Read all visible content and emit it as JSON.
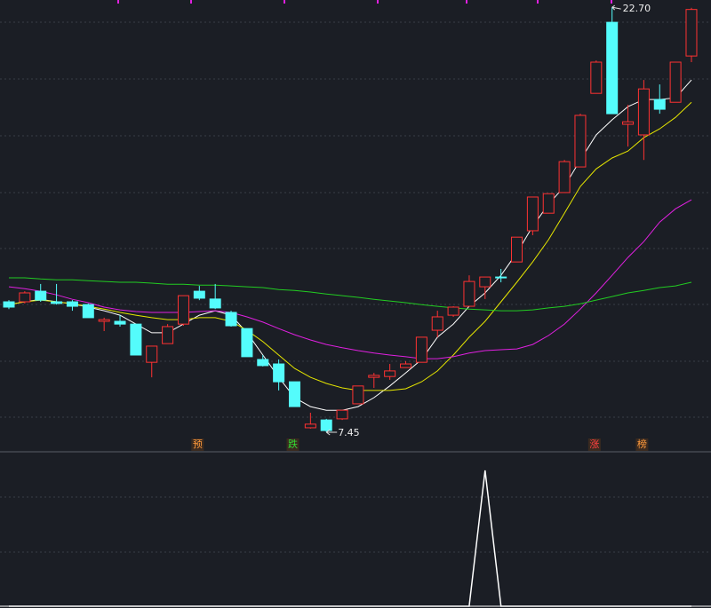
{
  "chart_data": [
    {
      "type": "candlestick",
      "up_color": "#ff3232",
      "down_color": "#54fcfc",
      "background": "#1b1e25",
      "ylim": [
        6.78,
        22.96
      ],
      "open": [
        12.13,
        12.13,
        12.51,
        12.13,
        12.13,
        12.03,
        11.43,
        11.43,
        11.33,
        9.96,
        10.63,
        11.33,
        12.51,
        12.23,
        11.75,
        11.17,
        10.06,
        9.9,
        9.26,
        7.61,
        7.89,
        7.93,
        8.47,
        9.42,
        9.45,
        9.77,
        9.96,
        11.11,
        11.65,
        11.97,
        12.67,
        13.02,
        13.56,
        14.68,
        15.31,
        16.05,
        16.97,
        19.61,
        22.16,
        18.5,
        18.12,
        19.39,
        19.29,
        20.95
      ],
      "high": [
        12.19,
        12.51,
        12.77,
        12.77,
        12.19,
        12.07,
        11.56,
        11.65,
        11.33,
        10.54,
        11.33,
        12.35,
        12.7,
        12.77,
        11.81,
        11.17,
        10.22,
        10.06,
        9.26,
        8.15,
        7.93,
        8.24,
        9.11,
        9.58,
        9.9,
        10.0,
        10.86,
        11.81,
        11.97,
        13.08,
        13.02,
        13.31,
        14.45,
        15.89,
        16.01,
        17.22,
        18.88,
        20.79,
        22.7,
        19.2,
        20.09,
        19.93,
        20.73,
        22.68
      ],
      "low": [
        11.87,
        12.07,
        12.13,
        12.03,
        11.81,
        11.56,
        11.08,
        11.24,
        10.22,
        9.42,
        10.63,
        11.27,
        12.19,
        11.87,
        11.24,
        10.16,
        9.81,
        8.95,
        8.37,
        7.58,
        7.45,
        7.89,
        8.47,
        9.04,
        9.33,
        9.77,
        9.96,
        10.86,
        11.59,
        11.97,
        12.23,
        12.83,
        13.56,
        14.52,
        15.31,
        16.05,
        16.97,
        19.61,
        18.88,
        17.7,
        17.22,
        18.88,
        19.29,
        20.73
      ],
      "close": [
        11.94,
        12.45,
        12.19,
        12.07,
        11.97,
        11.56,
        11.49,
        11.33,
        10.22,
        10.54,
        11.24,
        12.35,
        12.26,
        11.91,
        11.27,
        10.16,
        9.84,
        9.26,
        8.37,
        7.74,
        7.51,
        8.24,
        9.11,
        9.49,
        9.65,
        9.9,
        10.86,
        11.59,
        11.94,
        12.86,
        13.02,
        12.99,
        14.45,
        15.89,
        16.01,
        17.16,
        18.82,
        20.73,
        18.88,
        18.59,
        19.77,
        19.04,
        20.73,
        22.62
      ],
      "lines": [
        {
          "color": "#ffffff",
          "values": [
            12.03,
            12.13,
            12.22,
            12.13,
            12.06,
            11.94,
            11.81,
            11.65,
            11.33,
            11.02,
            11.02,
            11.33,
            11.65,
            11.81,
            11.65,
            11.02,
            10.22,
            9.42,
            8.69,
            8.37,
            8.24,
            8.24,
            8.37,
            8.69,
            9.11,
            9.58,
            10.06,
            10.86,
            11.33,
            11.97,
            12.45,
            13.08,
            13.88,
            14.84,
            15.63,
            16.27,
            17.22,
            18.12,
            18.66,
            19.13,
            19.39,
            19.39,
            19.45,
            20.09
          ]
        },
        {
          "color": "#e6e600",
          "values": [
            12.03,
            12.13,
            12.19,
            12.13,
            12.06,
            11.97,
            11.87,
            11.75,
            11.65,
            11.56,
            11.49,
            11.49,
            11.56,
            11.56,
            11.43,
            11.11,
            10.7,
            10.22,
            9.74,
            9.42,
            9.2,
            9.04,
            8.95,
            8.95,
            8.95,
            9.01,
            9.26,
            9.65,
            10.22,
            10.86,
            11.43,
            12.13,
            12.83,
            13.56,
            14.36,
            15.31,
            16.27,
            16.9,
            17.29,
            17.54,
            18.02,
            18.34,
            18.75,
            19.29
          ]
        },
        {
          "color": "#e020e0",
          "values": [
            12.67,
            12.6,
            12.51,
            12.38,
            12.22,
            12.1,
            11.94,
            11.84,
            11.78,
            11.75,
            11.75,
            11.75,
            11.78,
            11.81,
            11.75,
            11.59,
            11.4,
            11.17,
            10.95,
            10.76,
            10.6,
            10.48,
            10.38,
            10.29,
            10.22,
            10.16,
            10.09,
            10.09,
            10.16,
            10.29,
            10.38,
            10.41,
            10.44,
            10.6,
            10.92,
            11.33,
            11.87,
            12.45,
            13.08,
            13.72,
            14.29,
            14.99,
            15.47,
            15.79
          ]
        },
        {
          "color": "#22cc22",
          "values": [
            12.99,
            12.99,
            12.95,
            12.92,
            12.92,
            12.89,
            12.86,
            12.83,
            12.83,
            12.8,
            12.76,
            12.76,
            12.73,
            12.73,
            12.7,
            12.67,
            12.64,
            12.57,
            12.54,
            12.48,
            12.41,
            12.35,
            12.29,
            12.22,
            12.16,
            12.1,
            12.03,
            11.97,
            11.91,
            11.87,
            11.84,
            11.81,
            11.81,
            11.84,
            11.91,
            11.97,
            12.06,
            12.19,
            12.32,
            12.45,
            12.54,
            12.64,
            12.7,
            12.83
          ]
        }
      ],
      "max_label": "22.70",
      "min_label": "7.45",
      "signals": [
        {
          "text": "预",
          "color": "#ff9a3c"
        },
        {
          "text": "跌",
          "color": "#33dd33"
        },
        {
          "text": "涨",
          "color": "#ff4040"
        },
        {
          "text": "榜",
          "color": "#ff9a3c"
        }
      ]
    },
    {
      "type": "line",
      "color": "#ffffff",
      "ylim": [
        0,
        1
      ],
      "values": [
        0,
        0,
        0,
        0,
        0,
        0,
        0,
        0,
        0,
        0,
        0,
        0,
        0,
        0,
        0,
        0,
        0,
        0,
        0,
        0,
        0,
        0,
        0,
        0,
        0,
        0,
        0,
        0,
        0,
        0,
        1,
        0,
        0,
        0,
        0,
        0,
        0,
        0,
        0,
        0,
        0,
        0,
        0,
        0
      ]
    }
  ]
}
